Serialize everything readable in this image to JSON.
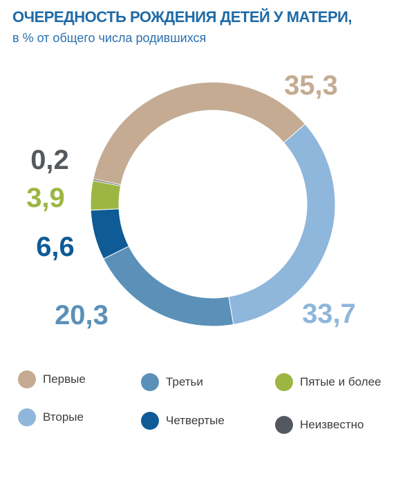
{
  "header": {
    "title": "ОЧЕРЕДНОСТЬ РОЖДЕНИЯ ДЕТЕЙ У МАТЕРИ,",
    "subtitle": "в % от общего числа родившихся"
  },
  "chart_data": {
    "type": "pie",
    "donut": true,
    "categories": [
      "Первые",
      "Вторые",
      "Третьи",
      "Четвертые",
      "Пятые и более",
      "Неизвестно"
    ],
    "values": [
      35.3,
      33.7,
      20.3,
      6.6,
      3.9,
      0.2
    ],
    "labels": [
      "35,3",
      "33,7",
      "20,3",
      "6,6",
      "3,9",
      "0,2"
    ],
    "colors": [
      "#c4ab92",
      "#8fb6db",
      "#5b90b8",
      "#0e5b96",
      "#9db643",
      "#54585f"
    ],
    "legend_placement": "bottom"
  }
}
